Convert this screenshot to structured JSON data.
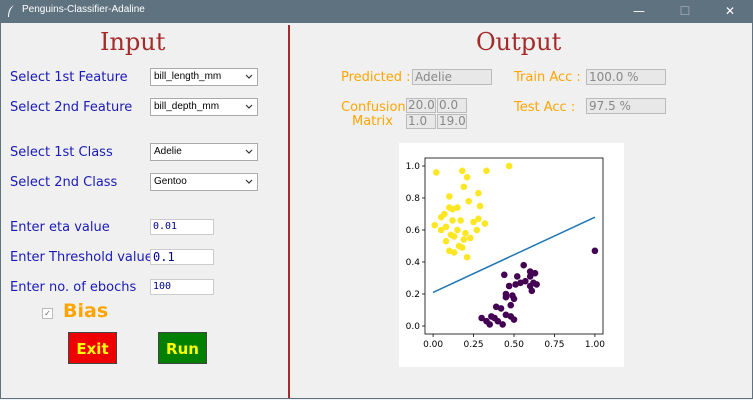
{
  "window": {
    "title": "Penguins-Classifier-Adaline",
    "minimize": "—",
    "maximize": "☐",
    "close": "✕"
  },
  "input": {
    "heading": "Input",
    "feature1_label": "Select 1st Feature",
    "feature1_value": "bill_length_mm",
    "feature2_label": "Select 2nd Feature",
    "feature2_value": "bill_depth_mm",
    "class1_label": "Select 1st Class",
    "class1_value": "Adelie",
    "class2_label": "Select 2nd Class",
    "class2_value": "Gentoo",
    "eta_label": "Enter eta value",
    "eta_value": "0.01",
    "threshold_label": "Enter Threshold value",
    "threshold_value": "0.1",
    "epochs_label": "Enter no. of ebochs",
    "epochs_value": "100",
    "bias_label": "Bias",
    "bias_checked": true,
    "exit_label": "Exit",
    "run_label": "Run"
  },
  "output": {
    "heading": "Output",
    "predicted_label": "Predicted :",
    "predicted_value": "Adelie",
    "train_acc_label": "Train Acc :",
    "train_acc_value": "100.0 %",
    "test_acc_label": "Test  Acc :",
    "test_acc_value": "97.5 %",
    "confusion_label_1": "Confusion",
    "confusion_label_2": "Matrix",
    "matrix": [
      [
        "20.0",
        "0.0"
      ],
      [
        "1.0",
        "19.0"
      ]
    ]
  },
  "colors": {
    "accent_label": "#1a1ab8",
    "heading": "#a52a2a",
    "output_label": "#ffa500",
    "class_a": "#fde725",
    "class_b": "#440154",
    "boundary": "#1f77b4"
  },
  "chart_data": {
    "type": "scatter",
    "xlim": [
      -0.05,
      1.05
    ],
    "ylim": [
      -0.05,
      1.05
    ],
    "xticks": [
      "0.00",
      "0.25",
      "0.50",
      "0.75",
      "1.00"
    ],
    "yticks": [
      "0.0",
      "0.2",
      "0.4",
      "0.6",
      "0.8",
      "1.0"
    ],
    "grid": false,
    "series": [
      {
        "color": "#fde725",
        "points": [
          [
            0.02,
            0.96
          ],
          [
            0.18,
            0.97
          ],
          [
            0.33,
            0.97
          ],
          [
            0.47,
            1.0
          ],
          [
            0.1,
            0.81
          ],
          [
            0.21,
            0.93
          ],
          [
            0.28,
            0.83
          ],
          [
            0.19,
            0.87
          ],
          [
            0.22,
            0.78
          ],
          [
            0.07,
            0.7
          ],
          [
            0.12,
            0.73
          ],
          [
            0.15,
            0.74
          ],
          [
            0.1,
            0.74
          ],
          [
            0.29,
            0.75
          ],
          [
            0.01,
            0.63
          ],
          [
            0.05,
            0.68
          ],
          [
            0.12,
            0.66
          ],
          [
            0.17,
            0.66
          ],
          [
            0.25,
            0.65
          ],
          [
            0.28,
            0.67
          ],
          [
            0.32,
            0.64
          ],
          [
            0.05,
            0.6
          ],
          [
            0.08,
            0.62
          ],
          [
            0.11,
            0.57
          ],
          [
            0.15,
            0.6
          ],
          [
            0.2,
            0.58
          ],
          [
            0.08,
            0.53
          ],
          [
            0.13,
            0.56
          ],
          [
            0.16,
            0.5
          ],
          [
            0.19,
            0.54
          ],
          [
            0.23,
            0.55
          ],
          [
            0.27,
            0.6
          ],
          [
            0.1,
            0.47
          ],
          [
            0.13,
            0.46
          ],
          [
            0.18,
            0.49
          ],
          [
            0.21,
            0.43
          ]
        ]
      },
      {
        "color": "#440154",
        "points": [
          [
            0.44,
            0.32
          ],
          [
            0.52,
            0.31
          ],
          [
            0.56,
            0.38
          ],
          [
            0.6,
            0.34
          ],
          [
            0.54,
            0.27
          ],
          [
            0.57,
            0.28
          ],
          [
            0.6,
            0.31
          ],
          [
            0.63,
            0.33
          ],
          [
            0.62,
            0.27
          ],
          [
            0.6,
            0.25
          ],
          [
            0.64,
            0.26
          ],
          [
            0.61,
            0.22
          ],
          [
            0.51,
            0.26
          ],
          [
            0.47,
            0.25
          ],
          [
            0.45,
            0.2
          ],
          [
            0.49,
            0.19
          ],
          [
            0.45,
            0.18
          ],
          [
            0.5,
            0.17
          ],
          [
            0.48,
            0.13
          ],
          [
            0.39,
            0.12
          ],
          [
            0.42,
            0.11
          ],
          [
            0.3,
            0.05
          ],
          [
            0.33,
            0.03
          ],
          [
            0.36,
            0.06
          ],
          [
            0.38,
            0.05
          ],
          [
            0.35,
            0.01
          ],
          [
            0.4,
            0.03
          ],
          [
            0.43,
            0.01
          ],
          [
            0.45,
            0.07
          ],
          [
            0.48,
            0.06
          ],
          [
            0.5,
            0.04
          ],
          [
            1.0,
            0.47
          ]
        ]
      }
    ],
    "line": [
      [
        0.0,
        0.21
      ],
      [
        1.0,
        0.68
      ]
    ]
  }
}
